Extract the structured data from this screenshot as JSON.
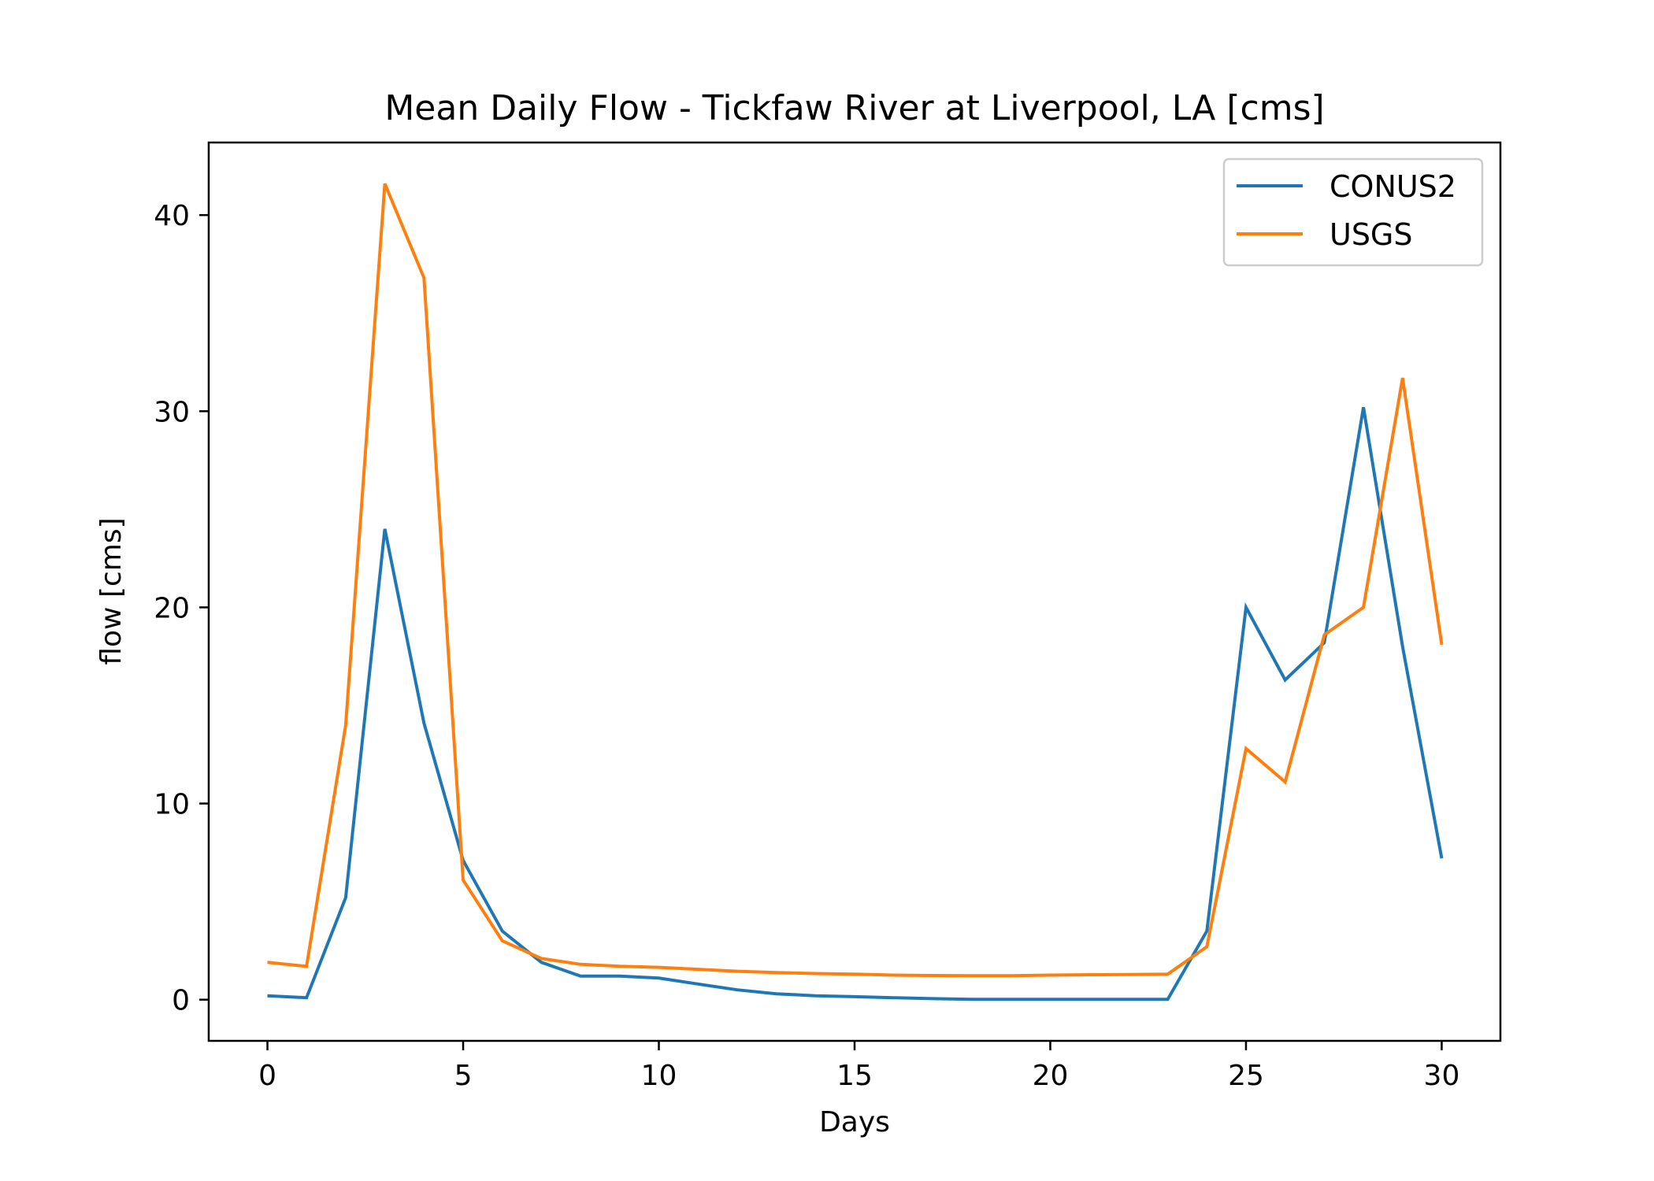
{
  "chart_data": {
    "type": "line",
    "title": "Mean Daily Flow - Tickfaw River at Liverpool, LA [cms]",
    "xlabel": "Days",
    "ylabel": "flow [cms]",
    "xlim": [
      -1.5,
      31.5
    ],
    "ylim": [
      -2.1,
      43.7
    ],
    "xticks": [
      0,
      5,
      10,
      15,
      20,
      25,
      30
    ],
    "yticks": [
      0,
      10,
      20,
      30,
      40
    ],
    "grid": false,
    "legend_position": "top-right",
    "x": [
      0,
      1,
      2,
      3,
      4,
      5,
      6,
      7,
      8,
      9,
      10,
      11,
      12,
      13,
      14,
      15,
      16,
      17,
      18,
      19,
      20,
      21,
      22,
      23,
      24,
      25,
      26,
      27,
      28,
      29,
      30
    ],
    "series": [
      {
        "name": "CONUS2",
        "color": "#1f77b4",
        "values": [
          0.2,
          0.1,
          5.2,
          24.0,
          14.1,
          7.1,
          3.5,
          1.9,
          1.2,
          1.2,
          1.1,
          0.8,
          0.5,
          0.3,
          0.2,
          0.15,
          0.1,
          0.05,
          0.02,
          0.02,
          0.02,
          0.02,
          0.02,
          0.02,
          3.5,
          20.0,
          16.3,
          18.2,
          30.2,
          18.0,
          7.2
        ]
      },
      {
        "name": "USGS",
        "color": "#ff7f0e",
        "values": [
          1.9,
          1.7,
          14.0,
          41.6,
          36.8,
          6.1,
          3.0,
          2.1,
          1.8,
          1.7,
          1.65,
          1.55,
          1.45,
          1.38,
          1.33,
          1.3,
          1.25,
          1.23,
          1.22,
          1.22,
          1.25,
          1.27,
          1.28,
          1.3,
          2.7,
          12.8,
          11.1,
          18.6,
          20.0,
          31.7,
          18.1
        ]
      }
    ]
  }
}
